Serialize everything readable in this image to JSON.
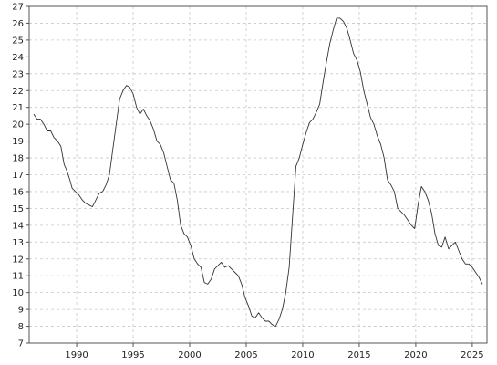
{
  "chart_data": {
    "type": "line",
    "title": "",
    "xlabel": "",
    "ylabel": "",
    "xlim": [
      1985.8,
      2026.3
    ],
    "ylim": [
      7,
      27
    ],
    "x_ticks": [
      1990,
      1995,
      2000,
      2005,
      2010,
      2015,
      2020,
      2025
    ],
    "x_tick_labels": [
      "1990",
      "1995",
      "2000",
      "2005",
      "2010",
      "2015",
      "2020",
      "2025"
    ],
    "y_ticks": [
      7,
      8,
      9,
      10,
      11,
      12,
      13,
      14,
      15,
      16,
      17,
      18,
      19,
      20,
      21,
      22,
      23,
      24,
      25,
      26,
      27
    ],
    "y_tick_labels": [
      "7",
      "8",
      "9",
      "10",
      "11",
      "12",
      "13",
      "14",
      "15",
      "16",
      "17",
      "18",
      "19",
      "20",
      "21",
      "22",
      "23",
      "24",
      "25",
      "26",
      "27"
    ],
    "grid": true,
    "line_color": "#333333",
    "series": [
      {
        "x": [
          1986.2,
          1986.5,
          1986.8,
          1987.1,
          1987.4,
          1987.7,
          1988.0,
          1988.3,
          1988.6,
          1988.9,
          1989.1,
          1989.4,
          1989.6,
          1989.9,
          1990.2,
          1990.5,
          1990.8,
          1991.1,
          1991.4,
          1991.7,
          1992.0,
          1992.3,
          1992.6,
          1992.9,
          1993.2,
          1993.5,
          1993.8,
          1994.1,
          1994.4,
          1994.7,
          1995.0,
          1995.3,
          1995.6,
          1995.9,
          1996.2,
          1996.5,
          1996.8,
          1997.1,
          1997.4,
          1997.7,
          1998.0,
          1998.3,
          1998.6,
          1998.9,
          1999.2,
          1999.5,
          1999.8,
          2000.1,
          2000.4,
          2000.7,
          2001.0,
          2001.3,
          2001.6,
          2001.9,
          2002.2,
          2002.5,
          2002.8,
          2003.1,
          2003.4,
          2003.7,
          2004.0,
          2004.3,
          2004.6,
          2004.9,
          2005.2,
          2005.5,
          2005.8,
          2006.1,
          2006.4,
          2006.7,
          2007.0,
          2007.3,
          2007.6,
          2007.9,
          2008.2,
          2008.5,
          2008.8,
          2009.1,
          2009.4,
          2009.7,
          2010.0,
          2010.3,
          2010.6,
          2010.9,
          2011.2,
          2011.5,
          2011.8,
          2012.1,
          2012.4,
          2012.7,
          2013.0,
          2013.3,
          2013.6,
          2013.9,
          2014.2,
          2014.5,
          2014.8,
          2015.1,
          2015.4,
          2015.7,
          2016.0,
          2016.3,
          2016.6,
          2016.9,
          2017.2,
          2017.5,
          2017.8,
          2018.1,
          2018.4,
          2018.7,
          2019.0,
          2019.3,
          2019.6,
          2019.9,
          2020.2,
          2020.5,
          2020.8,
          2021.1,
          2021.4,
          2021.7,
          2022.0,
          2022.3,
          2022.6,
          2022.9,
          2023.2,
          2023.5,
          2023.8,
          2024.1,
          2024.4,
          2024.7,
          2025.0,
          2025.3,
          2025.6,
          2025.9
        ],
        "values": [
          20.6,
          20.3,
          20.3,
          20.0,
          19.6,
          19.6,
          19.2,
          19.0,
          18.7,
          17.6,
          17.3,
          16.7,
          16.2,
          16.0,
          15.8,
          15.5,
          15.3,
          15.2,
          15.1,
          15.5,
          15.9,
          16.0,
          16.4,
          17.0,
          18.5,
          20.0,
          21.5,
          22.0,
          22.3,
          22.2,
          21.8,
          21.0,
          20.6,
          20.9,
          20.5,
          20.2,
          19.7,
          19.0,
          18.8,
          18.3,
          17.5,
          16.7,
          16.5,
          15.5,
          14.0,
          13.5,
          13.3,
          12.8,
          12.0,
          11.7,
          11.5,
          10.6,
          10.5,
          10.8,
          11.4,
          11.6,
          11.8,
          11.5,
          11.6,
          11.4,
          11.2,
          11.0,
          10.5,
          9.7,
          9.2,
          8.6,
          8.5,
          8.8,
          8.5,
          8.3,
          8.3,
          8.1,
          8.0,
          8.4,
          9.0,
          10.0,
          11.5,
          14.5,
          17.5,
          18.0,
          18.8,
          19.5,
          20.1,
          20.3,
          20.7,
          21.2,
          22.5,
          23.7,
          24.8,
          25.6,
          26.3,
          26.3,
          26.1,
          25.7,
          25.0,
          24.2,
          23.8,
          23.1,
          22.0,
          21.2,
          20.4,
          20.0,
          19.3,
          18.8,
          18.0,
          16.7,
          16.4,
          16.0,
          15.0,
          14.8,
          14.6,
          14.3,
          14.0,
          13.8,
          15.2,
          16.3,
          16.0,
          15.5,
          14.7,
          13.5,
          12.8,
          12.7,
          13.3,
          12.6,
          12.8,
          13.0,
          12.5,
          12.0,
          11.7,
          11.7,
          11.5,
          11.2,
          10.9,
          10.5
        ]
      }
    ]
  }
}
